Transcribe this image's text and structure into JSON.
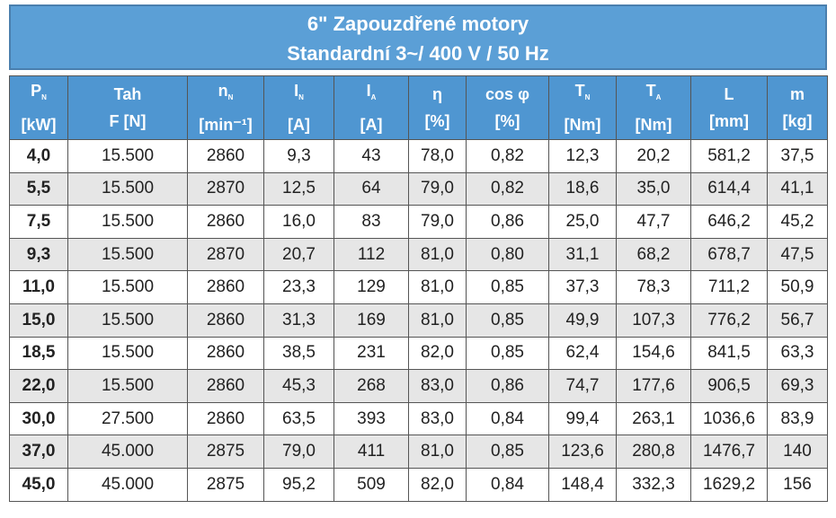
{
  "title": {
    "line1": "6\" Zapouzdřené motory",
    "line2": "Standardní 3~/ 400 V / 50 Hz"
  },
  "table": {
    "header": [
      {
        "symbol": "P",
        "sub": "N",
        "unit": "[kW]"
      },
      {
        "symbol": "Tah",
        "unit": "F [N]"
      },
      {
        "symbol": "n",
        "sub": "N",
        "unit": "[min⁻¹]"
      },
      {
        "symbol": "I",
        "sub": "N",
        "unit": "[A]"
      },
      {
        "symbol": "I",
        "sub": "A",
        "unit": "[A]"
      },
      {
        "symbol": "η",
        "unit": "[%]"
      },
      {
        "symbol": "cos φ",
        "unit": "[%]"
      },
      {
        "symbol": "T",
        "sub": "N",
        "unit": "[Nm]"
      },
      {
        "symbol": "T",
        "sub": "A",
        "unit": "[Nm]"
      },
      {
        "symbol": "L",
        "unit": "[mm]"
      },
      {
        "symbol": "m",
        "unit": "[kg]"
      }
    ],
    "rows": [
      [
        "4,0",
        "15.500",
        "2860",
        "9,3",
        "43",
        "78,0",
        "0,82",
        "12,3",
        "20,2",
        "581,2",
        "37,5"
      ],
      [
        "5,5",
        "15.500",
        "2870",
        "12,5",
        "64",
        "79,0",
        "0,82",
        "18,6",
        "35,0",
        "614,4",
        "41,1"
      ],
      [
        "7,5",
        "15.500",
        "2860",
        "16,0",
        "83",
        "79,0",
        "0,86",
        "25,0",
        "47,7",
        "646,2",
        "45,2"
      ],
      [
        "9,3",
        "15.500",
        "2870",
        "20,7",
        "112",
        "81,0",
        "0,80",
        "31,1",
        "68,2",
        "678,7",
        "47,5"
      ],
      [
        "11,0",
        "15.500",
        "2860",
        "23,3",
        "129",
        "81,0",
        "0,85",
        "37,3",
        "78,3",
        "711,2",
        "50,9"
      ],
      [
        "15,0",
        "15.500",
        "2860",
        "31,3",
        "169",
        "81,0",
        "0,85",
        "49,9",
        "107,3",
        "776,2",
        "56,7"
      ],
      [
        "18,5",
        "15.500",
        "2860",
        "38,5",
        "231",
        "82,0",
        "0,85",
        "62,4",
        "154,6",
        "841,5",
        "63,3"
      ],
      [
        "22,0",
        "15.500",
        "2860",
        "45,3",
        "268",
        "83,0",
        "0,86",
        "74,7",
        "177,6",
        "906,5",
        "69,3"
      ],
      [
        "30,0",
        "27.500",
        "2860",
        "63,5",
        "393",
        "83,0",
        "0,84",
        "99,4",
        "263,1",
        "1036,6",
        "83,9"
      ],
      [
        "37,0",
        "45.000",
        "2875",
        "79,0",
        "411",
        "81,0",
        "0,85",
        "123,6",
        "280,8",
        "1476,7",
        "140"
      ],
      [
        "45,0",
        "45.000",
        "2875",
        "95,2",
        "509",
        "82,0",
        "0,84",
        "148,4",
        "332,3",
        "1629,2",
        "156"
      ]
    ]
  }
}
